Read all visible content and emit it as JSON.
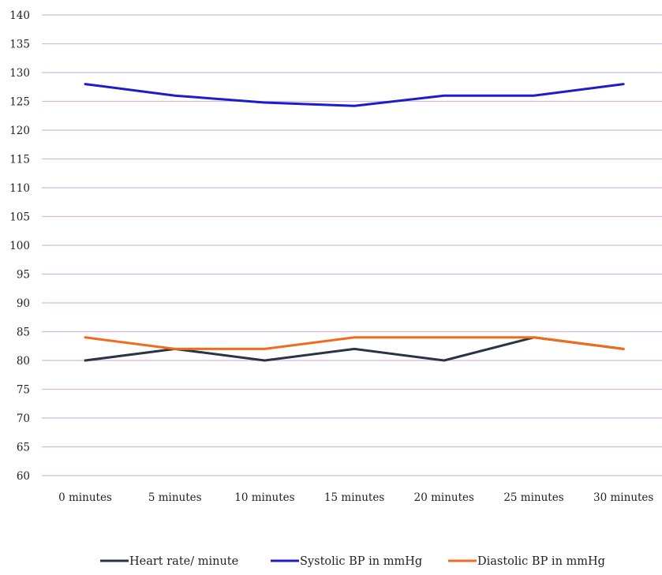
{
  "chart_data": {
    "type": "line",
    "title": "",
    "xlabel": "",
    "ylabel": "",
    "categories": [
      "0 minutes",
      "5 minutes",
      "10 minutes",
      "15 minutes",
      "20 minutes",
      "25 minutes",
      "30 minutes"
    ],
    "ylim": [
      60,
      140
    ],
    "ytick_step": 5,
    "grid": "horizontal",
    "legend_position": "bottom",
    "series": [
      {
        "name": "Heart rate/ minute",
        "color": "#2b3447",
        "values": [
          80,
          82,
          80,
          82,
          80,
          84,
          82
        ]
      },
      {
        "name": "Systolic BP in mmHg",
        "color": "#1c1ccc",
        "values": [
          128,
          126,
          124.8,
          124.2,
          126,
          126,
          128
        ]
      },
      {
        "name": "Diastolic BP in mmHg",
        "color": "#f26b1d",
        "values": [
          84,
          82,
          82,
          84,
          84,
          84,
          82
        ]
      }
    ],
    "grid_color": "#d3b8e0"
  }
}
